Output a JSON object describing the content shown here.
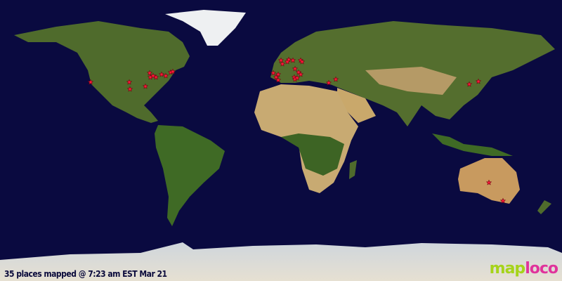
{
  "map": {
    "caption": "35 places mapped @ 7:23 am EST Mar 21",
    "logo": {
      "part1": "map",
      "part2": "loco"
    },
    "colors": {
      "ocean": "#0a0a40",
      "land": "#4f6b2c",
      "desert": "#c8aa72",
      "ice": "#e8e8ee",
      "marker": "#ff1a3a",
      "logo_map": "#a6d31a",
      "logo_loco": "#e0339b"
    },
    "marker_icon": "star-icon",
    "marker_count": 35
  }
}
